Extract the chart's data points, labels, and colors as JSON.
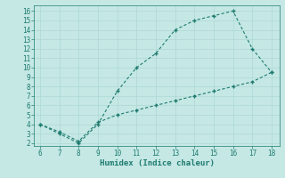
{
  "xlabel": "Humidex (Indice chaleur)",
  "bg_color": "#c5e8e5",
  "line_color": "#1e7b6e",
  "line1_x": [
    6,
    7,
    8,
    9,
    10,
    11,
    12,
    13,
    14,
    15,
    16,
    17,
    18
  ],
  "line1_y": [
    4,
    3,
    2,
    4,
    7.5,
    10,
    11.5,
    14,
    15,
    15.5,
    16,
    12,
    9.5
  ],
  "line2_x": [
    6,
    7,
    8,
    9,
    10,
    11,
    12,
    13,
    14,
    15,
    16,
    17,
    18
  ],
  "line2_y": [
    4,
    3.2,
    2.2,
    4.2,
    5.0,
    5.5,
    6.0,
    6.5,
    7.0,
    7.5,
    8.0,
    8.5,
    9.5
  ],
  "xlim": [
    5.7,
    18.4
  ],
  "ylim": [
    1.7,
    16.6
  ],
  "xticks": [
    6,
    7,
    8,
    9,
    10,
    11,
    12,
    13,
    14,
    15,
    16,
    17,
    18
  ],
  "yticks": [
    2,
    3,
    4,
    5,
    6,
    7,
    8,
    9,
    10,
    11,
    12,
    13,
    14,
    15,
    16
  ],
  "grid_color": "#aed8d4",
  "marker": "+"
}
